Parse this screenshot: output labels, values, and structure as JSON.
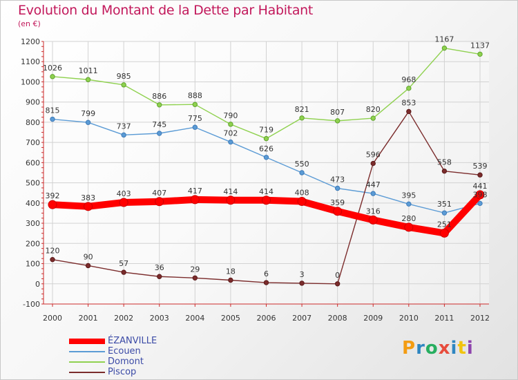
{
  "title": "Evolution du Montant de la Dette par Habitant",
  "subtitle": "(en €)",
  "brand": {
    "text": "Proxiti",
    "letter_colors": [
      "#f39c12",
      "#2e86c1",
      "#27ae60",
      "#e74c3c",
      "#2e86c1",
      "#f1c40f",
      "#8e44ad"
    ]
  },
  "chart_data": {
    "type": "line",
    "x": [
      "2000",
      "2001",
      "2002",
      "2003",
      "2004",
      "2005",
      "2006",
      "2007",
      "2008",
      "2009",
      "2010",
      "2011",
      "2012"
    ],
    "ylim": [
      -100,
      1200
    ],
    "yticks": [
      -100,
      0,
      100,
      200,
      300,
      400,
      500,
      600,
      700,
      800,
      900,
      1000,
      1100,
      1200
    ],
    "grid": true,
    "series": [
      {
        "name": "ÉZANVILLE",
        "color": "#ff0000",
        "values": [
          392,
          383,
          403,
          407,
          417,
          414,
          414,
          408,
          359,
          316,
          280,
          251,
          441
        ]
      },
      {
        "name": "Ecouen",
        "color": "#5b9bd5",
        "values": [
          815,
          799,
          737,
          745,
          775,
          702,
          626,
          550,
          473,
          447,
          395,
          351,
          398
        ]
      },
      {
        "name": "Domont",
        "color": "#8fd14f",
        "values": [
          1026,
          1011,
          985,
          886,
          888,
          790,
          719,
          821,
          807,
          820,
          968,
          1167,
          1137
        ]
      },
      {
        "name": "Piscop",
        "color": "#7b2c2c",
        "values": [
          120,
          90,
          57,
          36,
          29,
          18,
          6,
          3,
          0,
          596,
          853,
          558,
          539
        ]
      }
    ]
  }
}
